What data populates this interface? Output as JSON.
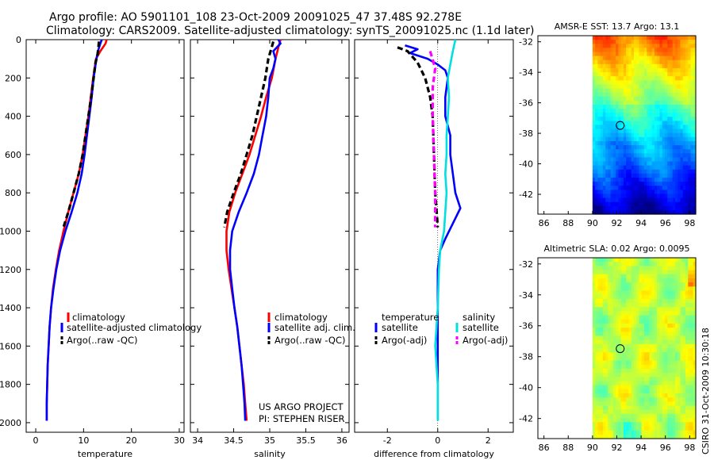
{
  "title": {
    "line1": "Argo profile: AO 5901101_108 23-Oct-2009 20091025_47 37.48S 92.278E",
    "line2": "Climatology: CARS2009. Satellite-adjusted climatology: synTS_20091025.nc (1.1d later)"
  },
  "credit": "CSIRO 31-Oct-2009 10:30:18",
  "project": {
    "line1": "US ARGO PROJECT",
    "line2": "PI: STEPHEN RISER"
  },
  "colors": {
    "climatology": "#ff0000",
    "satellite": "#0000ff",
    "argo": "#000000",
    "satellite_s": "#00e0e0",
    "argo_s": "#ff00ff"
  },
  "chart_data": [
    {
      "type": "line",
      "id": "temperature",
      "xlabel": "temperature",
      "xlim": [
        -2,
        31
      ],
      "ylim": [
        0,
        2050
      ],
      "xticks": [
        "0",
        "10",
        "20",
        "30"
      ],
      "yticks": [
        "0",
        "200",
        "400",
        "600",
        "800",
        "1000",
        "1200",
        "1400",
        "1600",
        "1800",
        "2000"
      ],
      "legend": [
        "climatology",
        "satellite-adjusted climatology",
        "Argo(..raw -QC)"
      ],
      "series": [
        {
          "name": "climatology",
          "style": "solid",
          "points": [
            [
              14.8,
              0
            ],
            [
              14.6,
              20
            ],
            [
              13.5,
              60
            ],
            [
              12.6,
              100
            ],
            [
              12.3,
              150
            ],
            [
              12.0,
              200
            ],
            [
              11.5,
              300
            ],
            [
              11.0,
              400
            ],
            [
              10.4,
              500
            ],
            [
              9.8,
              600
            ],
            [
              9.0,
              700
            ],
            [
              7.9,
              800
            ],
            [
              6.8,
              900
            ],
            [
              5.8,
              1000
            ],
            [
              4.9,
              1100
            ],
            [
              4.2,
              1200
            ],
            [
              3.6,
              1300
            ],
            [
              3.2,
              1400
            ],
            [
              2.9,
              1500
            ],
            [
              2.7,
              1600
            ],
            [
              2.5,
              1700
            ],
            [
              2.4,
              1800
            ],
            [
              2.3,
              1900
            ],
            [
              2.3,
              1990
            ]
          ]
        },
        {
          "name": "satellite",
          "style": "solid",
          "points": [
            [
              13.8,
              0
            ],
            [
              13.5,
              20
            ],
            [
              13.0,
              60
            ],
            [
              12.7,
              100
            ],
            [
              12.4,
              150
            ],
            [
              12.1,
              200
            ],
            [
              11.7,
              300
            ],
            [
              11.2,
              400
            ],
            [
              10.7,
              500
            ],
            [
              10.2,
              600
            ],
            [
              9.6,
              700
            ],
            [
              8.7,
              800
            ],
            [
              7.5,
              900
            ],
            [
              6.2,
              1000
            ],
            [
              5.1,
              1100
            ],
            [
              4.3,
              1200
            ],
            [
              3.7,
              1300
            ],
            [
              3.2,
              1400
            ],
            [
              2.9,
              1500
            ],
            [
              2.7,
              1600
            ],
            [
              2.5,
              1700
            ],
            [
              2.4,
              1800
            ],
            [
              2.3,
              1900
            ],
            [
              2.3,
              1990
            ]
          ]
        },
        {
          "name": "argo",
          "style": "dash",
          "points": [
            [
              13.2,
              10
            ],
            [
              13.1,
              40
            ],
            [
              12.9,
              80
            ],
            [
              12.5,
              120
            ],
            [
              12.1,
              200
            ],
            [
              11.6,
              300
            ],
            [
              11.0,
              400
            ],
            [
              10.4,
              500
            ],
            [
              9.8,
              600
            ],
            [
              9.0,
              700
            ],
            [
              7.9,
              800
            ],
            [
              6.8,
              900
            ],
            [
              5.8,
              980
            ]
          ]
        }
      ]
    },
    {
      "type": "line",
      "id": "salinity",
      "xlabel": "salinity",
      "xlim": [
        33.9,
        36.1
      ],
      "ylim": [
        0,
        2050
      ],
      "xticks": [
        "34",
        "34.5",
        "35",
        "35.5",
        "36"
      ],
      "legend": [
        "climatology",
        "satellite adj. clim.",
        "Argo(..raw -QC)"
      ],
      "series": [
        {
          "name": "climatology",
          "style": "solid",
          "points": [
            [
              35.15,
              0
            ],
            [
              35.12,
              40
            ],
            [
              35.08,
              100
            ],
            [
              35.03,
              200
            ],
            [
              34.95,
              300
            ],
            [
              34.88,
              400
            ],
            [
              34.8,
              500
            ],
            [
              34.72,
              600
            ],
            [
              34.62,
              700
            ],
            [
              34.52,
              800
            ],
            [
              34.44,
              900
            ],
            [
              34.4,
              1000
            ],
            [
              34.4,
              1100
            ],
            [
              34.43,
              1200
            ],
            [
              34.47,
              1300
            ],
            [
              34.51,
              1400
            ],
            [
              34.55,
              1500
            ],
            [
              34.58,
              1600
            ],
            [
              34.61,
              1700
            ],
            [
              34.64,
              1800
            ],
            [
              34.66,
              1900
            ],
            [
              34.68,
              1990
            ]
          ]
        },
        {
          "name": "satellite",
          "style": "solid",
          "points": [
            [
              35.12,
              0
            ],
            [
              35.15,
              20
            ],
            [
              35.05,
              60
            ],
            [
              35.08,
              100
            ],
            [
              35.05,
              150
            ],
            [
              35.0,
              200
            ],
            [
              34.98,
              300
            ],
            [
              34.95,
              400
            ],
            [
              34.9,
              500
            ],
            [
              34.85,
              600
            ],
            [
              34.78,
              700
            ],
            [
              34.68,
              800
            ],
            [
              34.57,
              900
            ],
            [
              34.48,
              1000
            ],
            [
              34.45,
              1100
            ],
            [
              34.45,
              1200
            ],
            [
              34.48,
              1300
            ],
            [
              34.51,
              1400
            ],
            [
              34.55,
              1500
            ],
            [
              34.58,
              1600
            ],
            [
              34.61,
              1700
            ],
            [
              34.63,
              1800
            ],
            [
              34.65,
              1900
            ],
            [
              34.66,
              1990
            ]
          ]
        },
        {
          "name": "argo",
          "style": "dash",
          "points": [
            [
              35.05,
              10
            ],
            [
              35.02,
              50
            ],
            [
              34.98,
              100
            ],
            [
              34.94,
              200
            ],
            [
              34.88,
              300
            ],
            [
              34.82,
              400
            ],
            [
              34.76,
              500
            ],
            [
              34.68,
              600
            ],
            [
              34.6,
              700
            ],
            [
              34.5,
              800
            ],
            [
              34.41,
              900
            ],
            [
              34.37,
              980
            ]
          ]
        }
      ]
    },
    {
      "type": "line",
      "id": "difference",
      "xlabel": "difference from climatology",
      "xlim": [
        -3.3,
        3.0
      ],
      "ylim": [
        0,
        2050
      ],
      "xticks": [
        "-2",
        "0",
        "2"
      ],
      "legend_headers": [
        "temperature",
        "salinity"
      ],
      "legend": [
        "satellite",
        "Argo(-adj)",
        "satellite",
        "Argo(-adj)"
      ],
      "series": [
        {
          "name": "temperature satellite",
          "style": "solid",
          "points": [
            [
              -1.3,
              30
            ],
            [
              -0.8,
              50
            ],
            [
              -1.1,
              70
            ],
            [
              -0.4,
              100
            ],
            [
              0.0,
              130
            ],
            [
              0.3,
              160
            ],
            [
              0.4,
              200
            ],
            [
              0.3,
              300
            ],
            [
              0.3,
              400
            ],
            [
              0.5,
              500
            ],
            [
              0.5,
              600
            ],
            [
              0.6,
              700
            ],
            [
              0.7,
              800
            ],
            [
              0.9,
              880
            ],
            [
              0.6,
              960
            ],
            [
              0.3,
              1040
            ],
            [
              0.1,
              1100
            ],
            [
              0.0,
              1200
            ],
            [
              0.0,
              1400
            ],
            [
              0.0,
              1600
            ],
            [
              0.0,
              1800
            ],
            [
              0.0,
              1990
            ]
          ]
        },
        {
          "name": "temperature argo",
          "style": "dash",
          "points": [
            [
              -1.6,
              40
            ],
            [
              -1.2,
              60
            ],
            [
              -0.8,
              120
            ],
            [
              -0.5,
              200
            ],
            [
              -0.3,
              300
            ],
            [
              -0.2,
              400
            ],
            [
              -0.15,
              600
            ],
            [
              -0.1,
              800
            ],
            [
              0.0,
              980
            ]
          ]
        },
        {
          "name": "salinity satellite",
          "style": "solid",
          "points": [
            [
              0.7,
              0
            ],
            [
              0.6,
              60
            ],
            [
              0.5,
              130
            ],
            [
              0.4,
              200
            ],
            [
              0.45,
              300
            ],
            [
              0.4,
              400
            ],
            [
              0.35,
              500
            ],
            [
              0.35,
              600
            ],
            [
              0.3,
              700
            ],
            [
              0.35,
              800
            ],
            [
              0.3,
              900
            ],
            [
              0.25,
              1000
            ],
            [
              0.1,
              1100
            ],
            [
              0.05,
              1200
            ],
            [
              0.0,
              1400
            ],
            [
              -0.1,
              1600
            ],
            [
              0.0,
              1800
            ],
            [
              0.0,
              1990
            ]
          ]
        },
        {
          "name": "salinity argo",
          "style": "dash",
          "points": [
            [
              -0.3,
              60
            ],
            [
              -0.1,
              150
            ],
            [
              -0.2,
              250
            ],
            [
              -0.2,
              400
            ],
            [
              -0.15,
              600
            ],
            [
              -0.1,
              800
            ],
            [
              -0.1,
              980
            ]
          ]
        }
      ]
    },
    {
      "type": "heatmap",
      "id": "sst-map",
      "title": "AMSR-E SST: 13.7 Argo: 13.1",
      "xlim": [
        85.5,
        98.5
      ],
      "ylim": [
        -43.3,
        -31.6
      ],
      "xticks": [
        "86",
        "88",
        "90",
        "92",
        "94",
        "96",
        "98"
      ],
      "yticks": [
        "-32",
        "-34",
        "-36",
        "-38",
        "-40",
        "-42"
      ],
      "data_x_start": 90,
      "argo_position": [
        92.278,
        -37.48
      ]
    },
    {
      "type": "heatmap",
      "id": "sla-map",
      "title": "Altimetric SLA: 0.02 Argo: 0.0095",
      "xlim": [
        85.5,
        98.5
      ],
      "ylim": [
        -43.3,
        -31.6
      ],
      "xticks": [
        "86",
        "88",
        "90",
        "92",
        "94",
        "96",
        "98"
      ],
      "yticks": [
        "-32",
        "-34",
        "-36",
        "-38",
        "-40",
        "-42"
      ],
      "data_x_start": 90,
      "argo_position": [
        92.278,
        -37.48
      ]
    }
  ]
}
